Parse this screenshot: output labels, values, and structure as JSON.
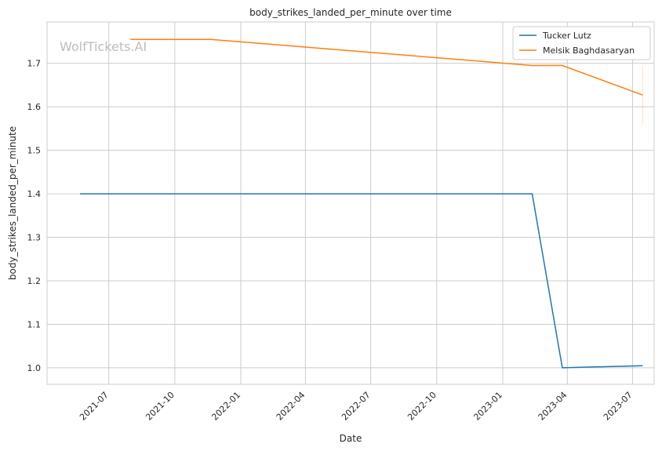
{
  "chart_data": {
    "type": "line",
    "title": "body_strikes_landed_per_minute over time",
    "xlabel": "Date",
    "ylabel": "body_strikes_landed_per_minute",
    "watermark": "WolfTickets.AI",
    "grid": true,
    "legend_position": "top-right",
    "x_range": [
      "2021-04-06",
      "2023-07-31"
    ],
    "ylim": [
      0.962,
      1.795
    ],
    "x_ticks": [
      "2021-07-01",
      "2021-10-01",
      "2022-01-01",
      "2022-04-01",
      "2022-07-01",
      "2022-10-01",
      "2023-01-01",
      "2023-04-01",
      "2023-07-01"
    ],
    "x_tick_labels": [
      "2021-07",
      "2021-10",
      "2022-01",
      "2022-04",
      "2022-07",
      "2022-10",
      "2023-01",
      "2023-04",
      "2023-07"
    ],
    "y_ticks": [
      1.0,
      1.1,
      1.2,
      1.3,
      1.4,
      1.5,
      1.6,
      1.7
    ],
    "y_tick_labels": [
      "1.0",
      "1.1",
      "1.2",
      "1.3",
      "1.4",
      "1.5",
      "1.6",
      "1.7"
    ],
    "series": [
      {
        "name": "Tucker Lutz",
        "color": "#1f77b4",
        "x": [
          "2021-05-22",
          "2023-02-11",
          "2023-03-25",
          "2023-07-15"
        ],
        "y": [
          1.4,
          1.4,
          1.0,
          1.005
        ]
      },
      {
        "name": "Melsik Baghdasaryan",
        "color": "#ff7f0e",
        "x": [
          "2021-07-31",
          "2021-11-20",
          "2023-02-11",
          "2023-03-25",
          "2023-07-15"
        ],
        "y": [
          1.755,
          1.755,
          1.695,
          1.695,
          1.627
        ]
      }
    ]
  }
}
